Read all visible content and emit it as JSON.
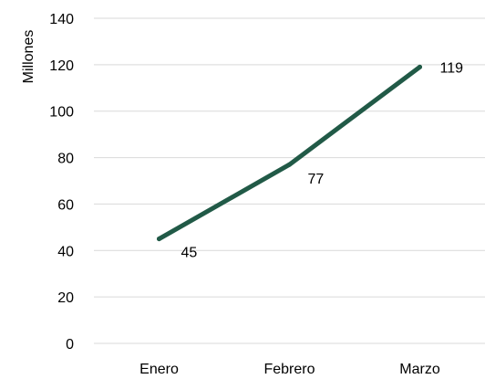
{
  "chart_data": {
    "type": "line",
    "categories": [
      "Enero",
      "Febrero",
      "Marzo"
    ],
    "series": [
      {
        "values": [
          45,
          77,
          119
        ]
      }
    ],
    "data_labels": [
      "45",
      "77",
      "119"
    ],
    "title": "",
    "xlabel": "",
    "ylabel": "Millones",
    "ylim": [
      0,
      140
    ],
    "yticks": [
      0,
      20,
      40,
      60,
      80,
      100,
      120,
      140
    ],
    "grid": "horizontal",
    "legend": "none",
    "colors": {
      "line": "#215a47",
      "grid": "#d9d9d9",
      "text": "#000000"
    }
  }
}
